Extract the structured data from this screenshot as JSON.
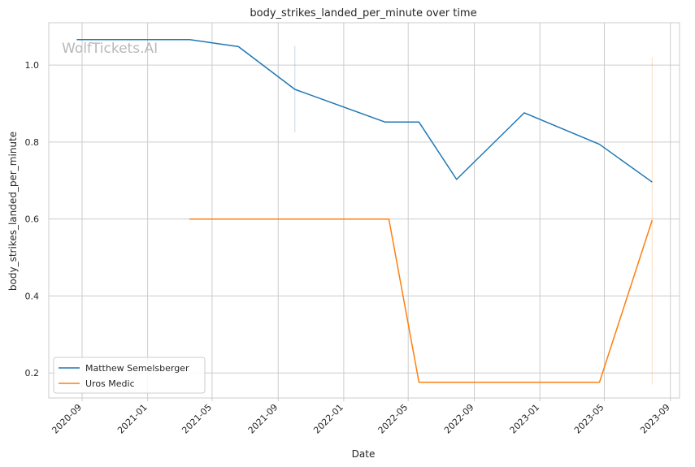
{
  "chart_data": {
    "type": "line",
    "title": "body_strikes_landed_per_minute over time",
    "xlabel": "Date",
    "ylabel": "body_strikes_landed_per_minute",
    "watermark": "WolfTickets.AI",
    "x_axis": {
      "kind": "date",
      "range": [
        "2020-07-01",
        "2023-09-18"
      ],
      "ticks": [
        "2020-09",
        "2021-01",
        "2021-05",
        "2021-09",
        "2022-01",
        "2022-05",
        "2022-09",
        "2023-01",
        "2023-05",
        "2023-09"
      ]
    },
    "y_axis": {
      "range": [
        0.135,
        1.11
      ],
      "ticks": [
        "0.2",
        "0.4",
        "0.6",
        "0.8",
        "1.0"
      ]
    },
    "grid": true,
    "legend_position": "bottom-left",
    "series": [
      {
        "name": "Matthew Semelsberger",
        "color": "#1f77b4",
        "points": [
          {
            "x": "2020-08-22",
            "y": 1.066
          },
          {
            "x": "2021-03-20",
            "y": 1.066
          },
          {
            "x": "2021-06-19",
            "y": 1.048
          },
          {
            "x": "2021-10-02",
            "y": 0.937
          },
          {
            "x": "2022-03-19",
            "y": 0.852
          },
          {
            "x": "2022-05-21",
            "y": 0.852
          },
          {
            "x": "2022-07-30",
            "y": 0.703
          },
          {
            "x": "2022-12-03",
            "y": 0.876
          },
          {
            "x": "2023-04-22",
            "y": 0.794
          },
          {
            "x": "2023-07-29",
            "y": 0.696
          }
        ],
        "error_bars": [
          {
            "x": "2021-10-02",
            "low": 0.825,
            "high": 1.05
          }
        ]
      },
      {
        "name": "Uros Medic",
        "color": "#ff7f0e",
        "points": [
          {
            "x": "2021-03-20",
            "y": 0.6
          },
          {
            "x": "2022-03-26",
            "y": 0.6
          },
          {
            "x": "2022-05-21",
            "y": 0.176
          },
          {
            "x": "2023-04-22",
            "y": 0.176
          },
          {
            "x": "2023-07-29",
            "y": 0.597
          }
        ],
        "error_bars": [
          {
            "x": "2023-07-29",
            "low": 0.17,
            "high": 1.02
          }
        ]
      }
    ]
  }
}
